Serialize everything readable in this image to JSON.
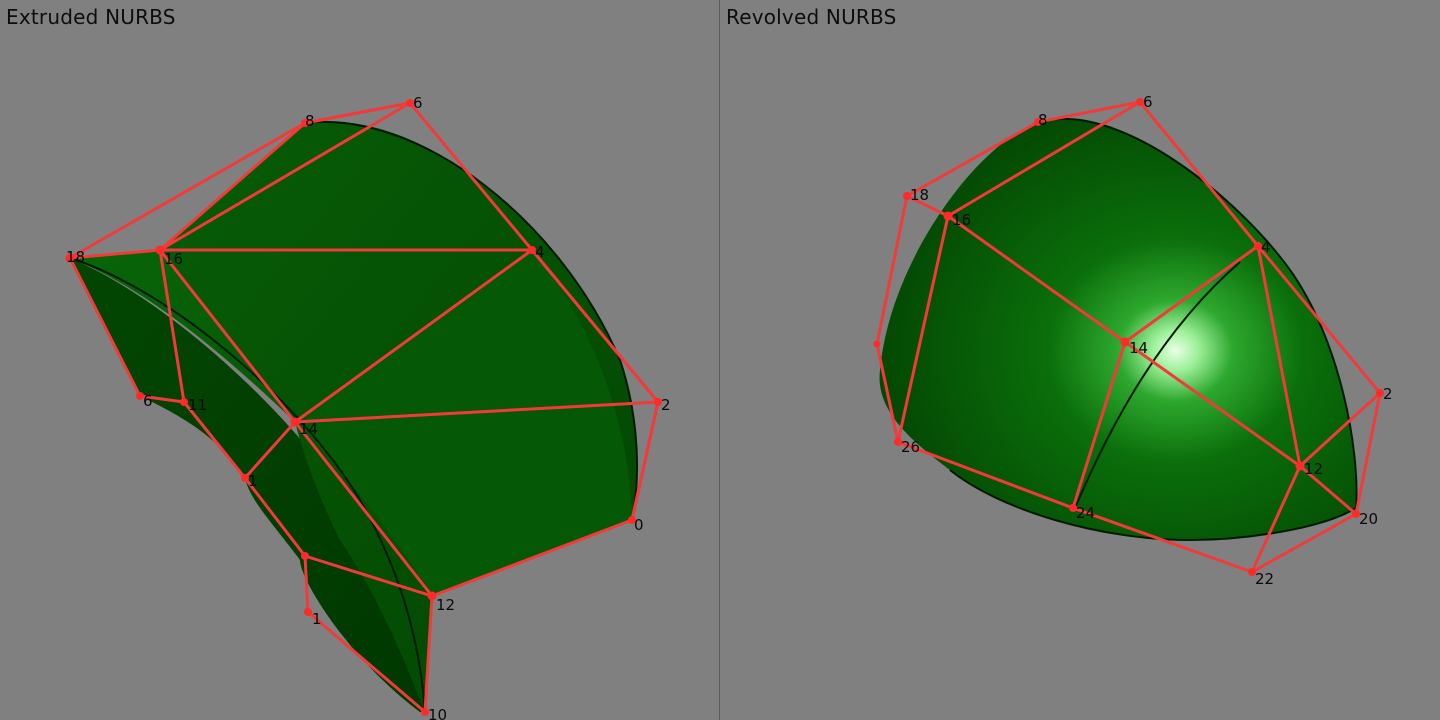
{
  "viewports": [
    {
      "title": "Extruded NURBS",
      "control_point_labels": [
        "6",
        "8",
        "16",
        "4",
        "2",
        "0",
        "14",
        "12",
        "10",
        "18",
        "11",
        "6",
        "1",
        "1"
      ]
    },
    {
      "title": "Revolved NURBS",
      "control_point_labels": [
        "6",
        "8",
        "18",
        "16",
        "4",
        "14",
        "2",
        "12",
        "20",
        "22",
        "24",
        "26"
      ]
    }
  ],
  "colors": {
    "background": "#808080",
    "surface": "#0a5e0a",
    "control_cage": "#f23a3a",
    "divider": "#5c5c5c"
  }
}
